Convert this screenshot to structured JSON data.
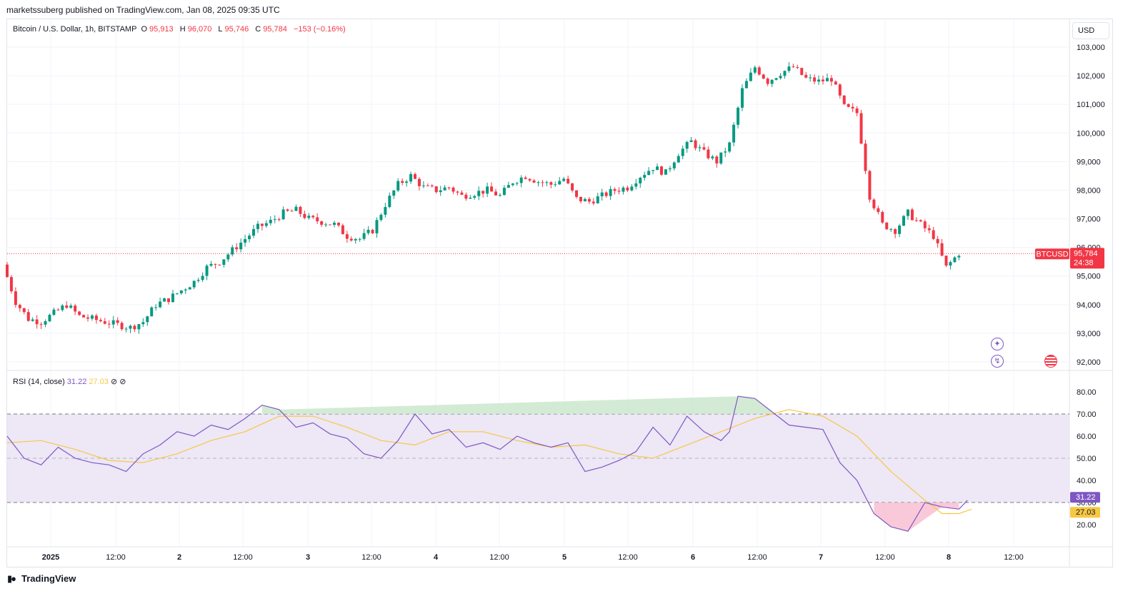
{
  "header": {
    "publish_line": "marketssuberg published on TradingView.com, Jan 08, 2025 09:35 UTC"
  },
  "symbol": {
    "title": "Bitcoin / U.S. Dollar, 1h, BITSTAMP",
    "open_key": "O",
    "open": "95,913",
    "high_key": "H",
    "high": "96,070",
    "low_key": "L",
    "low": "95,746",
    "close_key": "C",
    "close": "95,784",
    "change": "−153 (−0.16%)"
  },
  "currency_button": {
    "label": "USD"
  },
  "price_tag": {
    "symbol": "BTCUSD",
    "price": "95,784",
    "countdown": "24:38",
    "color": "#f23645"
  },
  "rsi_legend": {
    "title": "RSI (14, close)",
    "value": "31.22",
    "ma_value": "27.03",
    "icons": [
      "eye-off-icon",
      "eye-off-icon"
    ]
  },
  "footer": {
    "brand": "TradingView"
  },
  "icons": [
    "sparkle-icon",
    "lightning-icon",
    "us-flag-icon"
  ],
  "colors": {
    "up": "#089981",
    "down": "#f23645",
    "rsi": "#7e57c2",
    "rsi_ma": "#f7c843",
    "rsi_band": "#ede7f6"
  },
  "chart_data": [
    {
      "type": "candlestick",
      "title": "Bitcoin / U.S. Dollar, 1h, BITSTAMP",
      "y_ticks": [
        "103,000",
        "102,000",
        "101,000",
        "100,000",
        "99,000",
        "98,000",
        "97,000",
        "96,000",
        "95,000",
        "94,000",
        "93,000",
        "92,000"
      ],
      "ylim": [
        91800,
        103400
      ],
      "x_ticks": [
        "2025",
        "12:00",
        "2",
        "12:00",
        "3",
        "12:00",
        "4",
        "12:00",
        "5",
        "12:00",
        "6",
        "12:00",
        "7",
        "12:00",
        "8",
        "12:00"
      ],
      "close_points": [
        [
          0,
          95400
        ],
        [
          3,
          94100
        ],
        [
          6,
          93500
        ],
        [
          9,
          93400
        ],
        [
          12,
          93700
        ],
        [
          15,
          94000
        ],
        [
          18,
          93600
        ],
        [
          21,
          93500
        ],
        [
          24,
          93400
        ],
        [
          27,
          93300
        ],
        [
          30,
          93200
        ],
        [
          33,
          93400
        ],
        [
          36,
          94000
        ],
        [
          39,
          94200
        ],
        [
          42,
          94500
        ],
        [
          45,
          94800
        ],
        [
          48,
          95300
        ],
        [
          51,
          95500
        ],
        [
          54,
          95900
        ],
        [
          57,
          96300
        ],
        [
          60,
          96700
        ],
        [
          63,
          96900
        ],
        [
          66,
          97200
        ],
        [
          69,
          97300
        ],
        [
          72,
          97000
        ],
        [
          75,
          96900
        ],
        [
          78,
          96800
        ],
        [
          81,
          96400
        ],
        [
          84,
          96300
        ],
        [
          87,
          96600
        ],
        [
          90,
          97500
        ],
        [
          93,
          98200
        ],
        [
          96,
          98500
        ],
        [
          99,
          98100
        ],
        [
          102,
          98000
        ],
        [
          105,
          98100
        ],
        [
          108,
          97800
        ],
        [
          111,
          97900
        ],
        [
          114,
          98000
        ],
        [
          117,
          97800
        ],
        [
          120,
          98300
        ],
        [
          123,
          98500
        ],
        [
          126,
          98300
        ],
        [
          129,
          98200
        ],
        [
          132,
          98400
        ],
        [
          135,
          97700
        ],
        [
          138,
          97600
        ],
        [
          141,
          97800
        ],
        [
          144,
          98000
        ],
        [
          147,
          98100
        ],
        [
          150,
          98500
        ],
        [
          153,
          98800
        ],
        [
          156,
          98600
        ],
        [
          159,
          99300
        ],
        [
          162,
          99700
        ],
        [
          165,
          99300
        ],
        [
          168,
          99000
        ],
        [
          171,
          99600
        ],
        [
          174,
          101500
        ],
        [
          177,
          102300
        ],
        [
          180,
          101800
        ],
        [
          183,
          102100
        ],
        [
          186,
          102300
        ],
        [
          189,
          101900
        ],
        [
          192,
          101800
        ],
        [
          195,
          101900
        ],
        [
          198,
          100900
        ],
        [
          201,
          100700
        ],
        [
          204,
          97800
        ],
        [
          207,
          96800
        ],
        [
          210,
          96600
        ],
        [
          213,
          97200
        ],
        [
          216,
          96800
        ],
        [
          219,
          96400
        ],
        [
          222,
          95300
        ],
        [
          225,
          95800
        ]
      ]
    },
    {
      "type": "line",
      "title": "RSI (14, close)",
      "y_ticks": [
        "80.00",
        "70.00",
        "60.00",
        "50.00",
        "40.00",
        "30.00",
        "20.00"
      ],
      "ylim": [
        14,
        83
      ],
      "bands": {
        "upper": 70,
        "middle": 50,
        "lower": 30
      },
      "series": [
        {
          "name": "RSI",
          "values": [
            [
              0,
              60
            ],
            [
              4,
              50
            ],
            [
              8,
              47
            ],
            [
              12,
              55
            ],
            [
              16,
              50
            ],
            [
              20,
              48
            ],
            [
              24,
              47
            ],
            [
              28,
              44
            ],
            [
              32,
              52
            ],
            [
              36,
              56
            ],
            [
              40,
              62
            ],
            [
              44,
              60
            ],
            [
              48,
              65
            ],
            [
              52,
              63
            ],
            [
              56,
              68
            ],
            [
              60,
              74
            ],
            [
              64,
              72
            ],
            [
              68,
              64
            ],
            [
              72,
              66
            ],
            [
              76,
              61
            ],
            [
              80,
              59
            ],
            [
              84,
              52
            ],
            [
              88,
              50
            ],
            [
              92,
              58
            ],
            [
              96,
              70
            ],
            [
              100,
              61
            ],
            [
              104,
              63
            ],
            [
              108,
              55
            ],
            [
              112,
              57
            ],
            [
              116,
              54
            ],
            [
              120,
              60
            ],
            [
              124,
              57
            ],
            [
              128,
              55
            ],
            [
              132,
              57
            ],
            [
              136,
              44
            ],
            [
              140,
              46
            ],
            [
              144,
              49
            ],
            [
              148,
              53
            ],
            [
              152,
              64
            ],
            [
              156,
              56
            ],
            [
              160,
              69
            ],
            [
              164,
              62
            ],
            [
              168,
              58
            ],
            [
              170,
              62
            ],
            [
              172,
              78
            ],
            [
              176,
              77
            ],
            [
              180,
              71
            ],
            [
              184,
              65
            ],
            [
              188,
              64
            ],
            [
              192,
              63
            ],
            [
              196,
              48
            ],
            [
              200,
              40
            ],
            [
              204,
              25
            ],
            [
              208,
              19
            ],
            [
              212,
              17
            ],
            [
              216,
              30
            ],
            [
              220,
              28
            ],
            [
              224,
              27
            ],
            [
              226,
              31
            ]
          ]
        },
        {
          "name": "RSI-based MA",
          "values": [
            [
              0,
              57
            ],
            [
              8,
              58
            ],
            [
              16,
              54
            ],
            [
              24,
              49
            ],
            [
              32,
              48
            ],
            [
              40,
              52
            ],
            [
              48,
              58
            ],
            [
              56,
              62
            ],
            [
              64,
              69
            ],
            [
              72,
              69
            ],
            [
              80,
              64
            ],
            [
              88,
              58
            ],
            [
              96,
              56
            ],
            [
              104,
              62
            ],
            [
              112,
              62
            ],
            [
              120,
              58
            ],
            [
              128,
              55
            ],
            [
              136,
              56
            ],
            [
              144,
              52
            ],
            [
              152,
              50
            ],
            [
              160,
              56
            ],
            [
              168,
              62
            ],
            [
              172,
              65
            ],
            [
              176,
              68
            ],
            [
              184,
              72
            ],
            [
              192,
              69
            ],
            [
              200,
              60
            ],
            [
              208,
              44
            ],
            [
              216,
              31
            ],
            [
              220,
              25
            ],
            [
              224,
              25
            ],
            [
              227,
              27
            ]
          ]
        }
      ]
    }
  ]
}
